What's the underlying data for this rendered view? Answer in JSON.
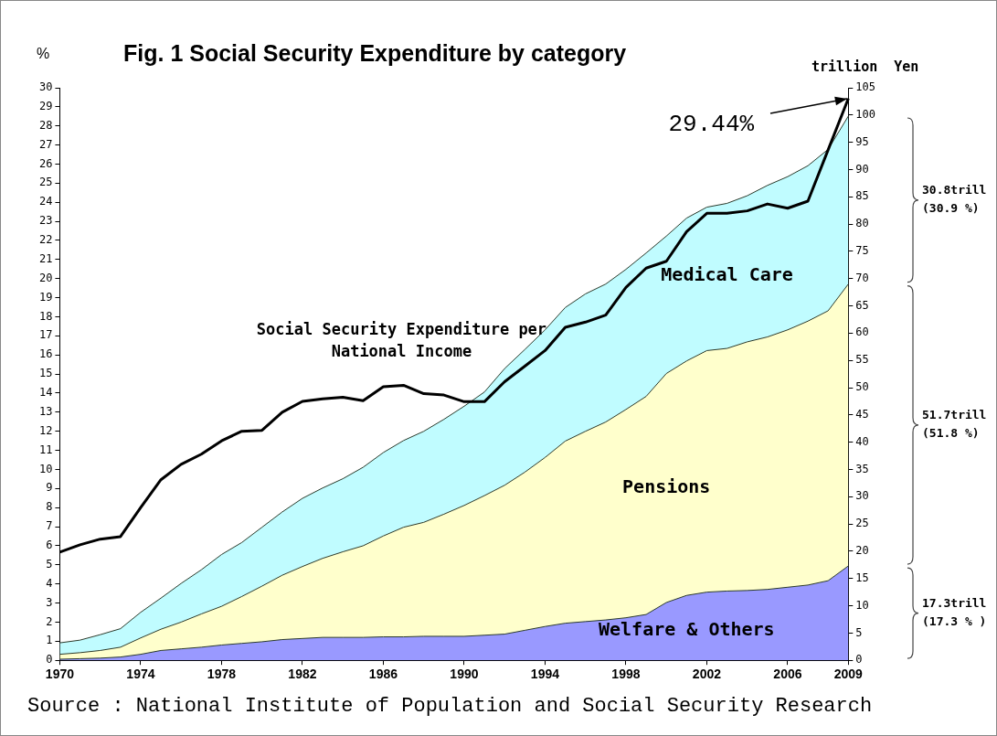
{
  "chart_data": {
    "type": "area",
    "title": "Fig. 1  Social Security Expenditure by category",
    "ylabel": "%",
    "y2label": "trillion  Yen",
    "x": [
      1970,
      1971,
      1972,
      1973,
      1974,
      1975,
      1976,
      1977,
      1978,
      1979,
      1980,
      1981,
      1982,
      1983,
      1984,
      1985,
      1986,
      1987,
      1988,
      1989,
      1990,
      1991,
      1992,
      1993,
      1994,
      1995,
      1996,
      1997,
      1998,
      1999,
      2000,
      2001,
      2002,
      2003,
      2004,
      2005,
      2006,
      2007,
      2008,
      2009
    ],
    "xlim": [
      1970,
      2009
    ],
    "xticks": [
      1970,
      1974,
      1978,
      1982,
      1986,
      1990,
      1994,
      1998,
      2002,
      2006,
      2009
    ],
    "ylim": [
      0,
      30
    ],
    "yticks": [
      0,
      1,
      2,
      3,
      4,
      5,
      6,
      7,
      8,
      9,
      10,
      11,
      12,
      13,
      14,
      15,
      16,
      17,
      18,
      19,
      20,
      21,
      22,
      23,
      24,
      25,
      26,
      27,
      28,
      29,
      30
    ],
    "y2lim": [
      0,
      105
    ],
    "y2ticks": [
      0,
      5,
      10,
      15,
      20,
      25,
      30,
      35,
      40,
      45,
      50,
      55,
      60,
      65,
      70,
      75,
      80,
      85,
      90,
      95,
      100,
      105
    ],
    "stacked": true,
    "grid": false,
    "legend": false,
    "marker": "none",
    "series": [
      {
        "name": "Welfare & Others",
        "axis": "y2",
        "color": "#9999ff",
        "values": [
          0.2,
          0.3,
          0.4,
          0.6,
          1.1,
          1.8,
          2.1,
          2.4,
          2.8,
          3.1,
          3.4,
          3.8,
          4.0,
          4.2,
          4.2,
          4.2,
          4.3,
          4.3,
          4.4,
          4.4,
          4.4,
          4.6,
          4.8,
          5.5,
          6.2,
          6.8,
          7.1,
          7.4,
          7.8,
          8.4,
          10.6,
          11.9,
          12.5,
          12.7,
          12.8,
          13.0,
          13.4,
          13.8,
          14.6,
          17.3
        ]
      },
      {
        "name": "Pensions",
        "axis": "y2",
        "color": "#ffffcc",
        "values": [
          0.9,
          1.1,
          1.4,
          1.8,
          3.0,
          3.9,
          4.9,
          6.1,
          7.1,
          8.6,
          10.2,
          11.8,
          13.2,
          14.5,
          15.7,
          16.8,
          18.5,
          20.1,
          20.9,
          22.4,
          24.0,
          25.6,
          27.3,
          29.0,
          31.0,
          33.4,
          34.9,
          36.3,
          38.2,
          40.0,
          42.0,
          43.0,
          44.3,
          44.5,
          45.6,
          46.3,
          47.2,
          48.4,
          49.5,
          51.7
        ]
      },
      {
        "name": "Medical Care",
        "axis": "y2",
        "color": "#c0fcff",
        "values": [
          2.1,
          2.3,
          2.9,
          3.4,
          4.7,
          5.7,
          7.1,
          8.1,
          9.5,
          9.9,
          10.8,
          11.6,
          12.5,
          12.9,
          13.4,
          14.4,
          15.3,
          15.9,
          16.7,
          17.4,
          18.2,
          19.0,
          21.4,
          22.5,
          23.4,
          24.5,
          25.2,
          25.3,
          25.7,
          26.3,
          25.2,
          26.2,
          26.3,
          26.6,
          26.8,
          27.8,
          28.1,
          28.5,
          29.6,
          30.8
        ]
      },
      {
        "name": "Social Security Expenditure per National Income",
        "type": "line",
        "axis": "y",
        "color": "#000000",
        "line_style": "solid",
        "values": [
          5.67,
          6.05,
          6.35,
          6.48,
          8.0,
          9.46,
          10.27,
          10.8,
          11.5,
          12.0,
          12.05,
          13.0,
          13.57,
          13.7,
          13.78,
          13.6,
          14.33,
          14.41,
          13.97,
          13.9,
          13.55,
          13.55,
          14.6,
          15.41,
          16.23,
          17.45,
          17.72,
          18.09,
          19.54,
          20.55,
          20.91,
          22.46,
          23.42,
          23.42,
          23.55,
          23.91,
          23.69,
          24.06,
          26.75,
          29.44
        ]
      }
    ],
    "annotations": [
      {
        "text": "29.44%",
        "x": 2009,
        "y": 29.44
      },
      "30.8trill (30.9 %)",
      "51.7trill (51.8 %)",
      "17.3trill (17.3 % )",
      "Source : National Institute of Population and Social Security Research"
    ]
  }
}
